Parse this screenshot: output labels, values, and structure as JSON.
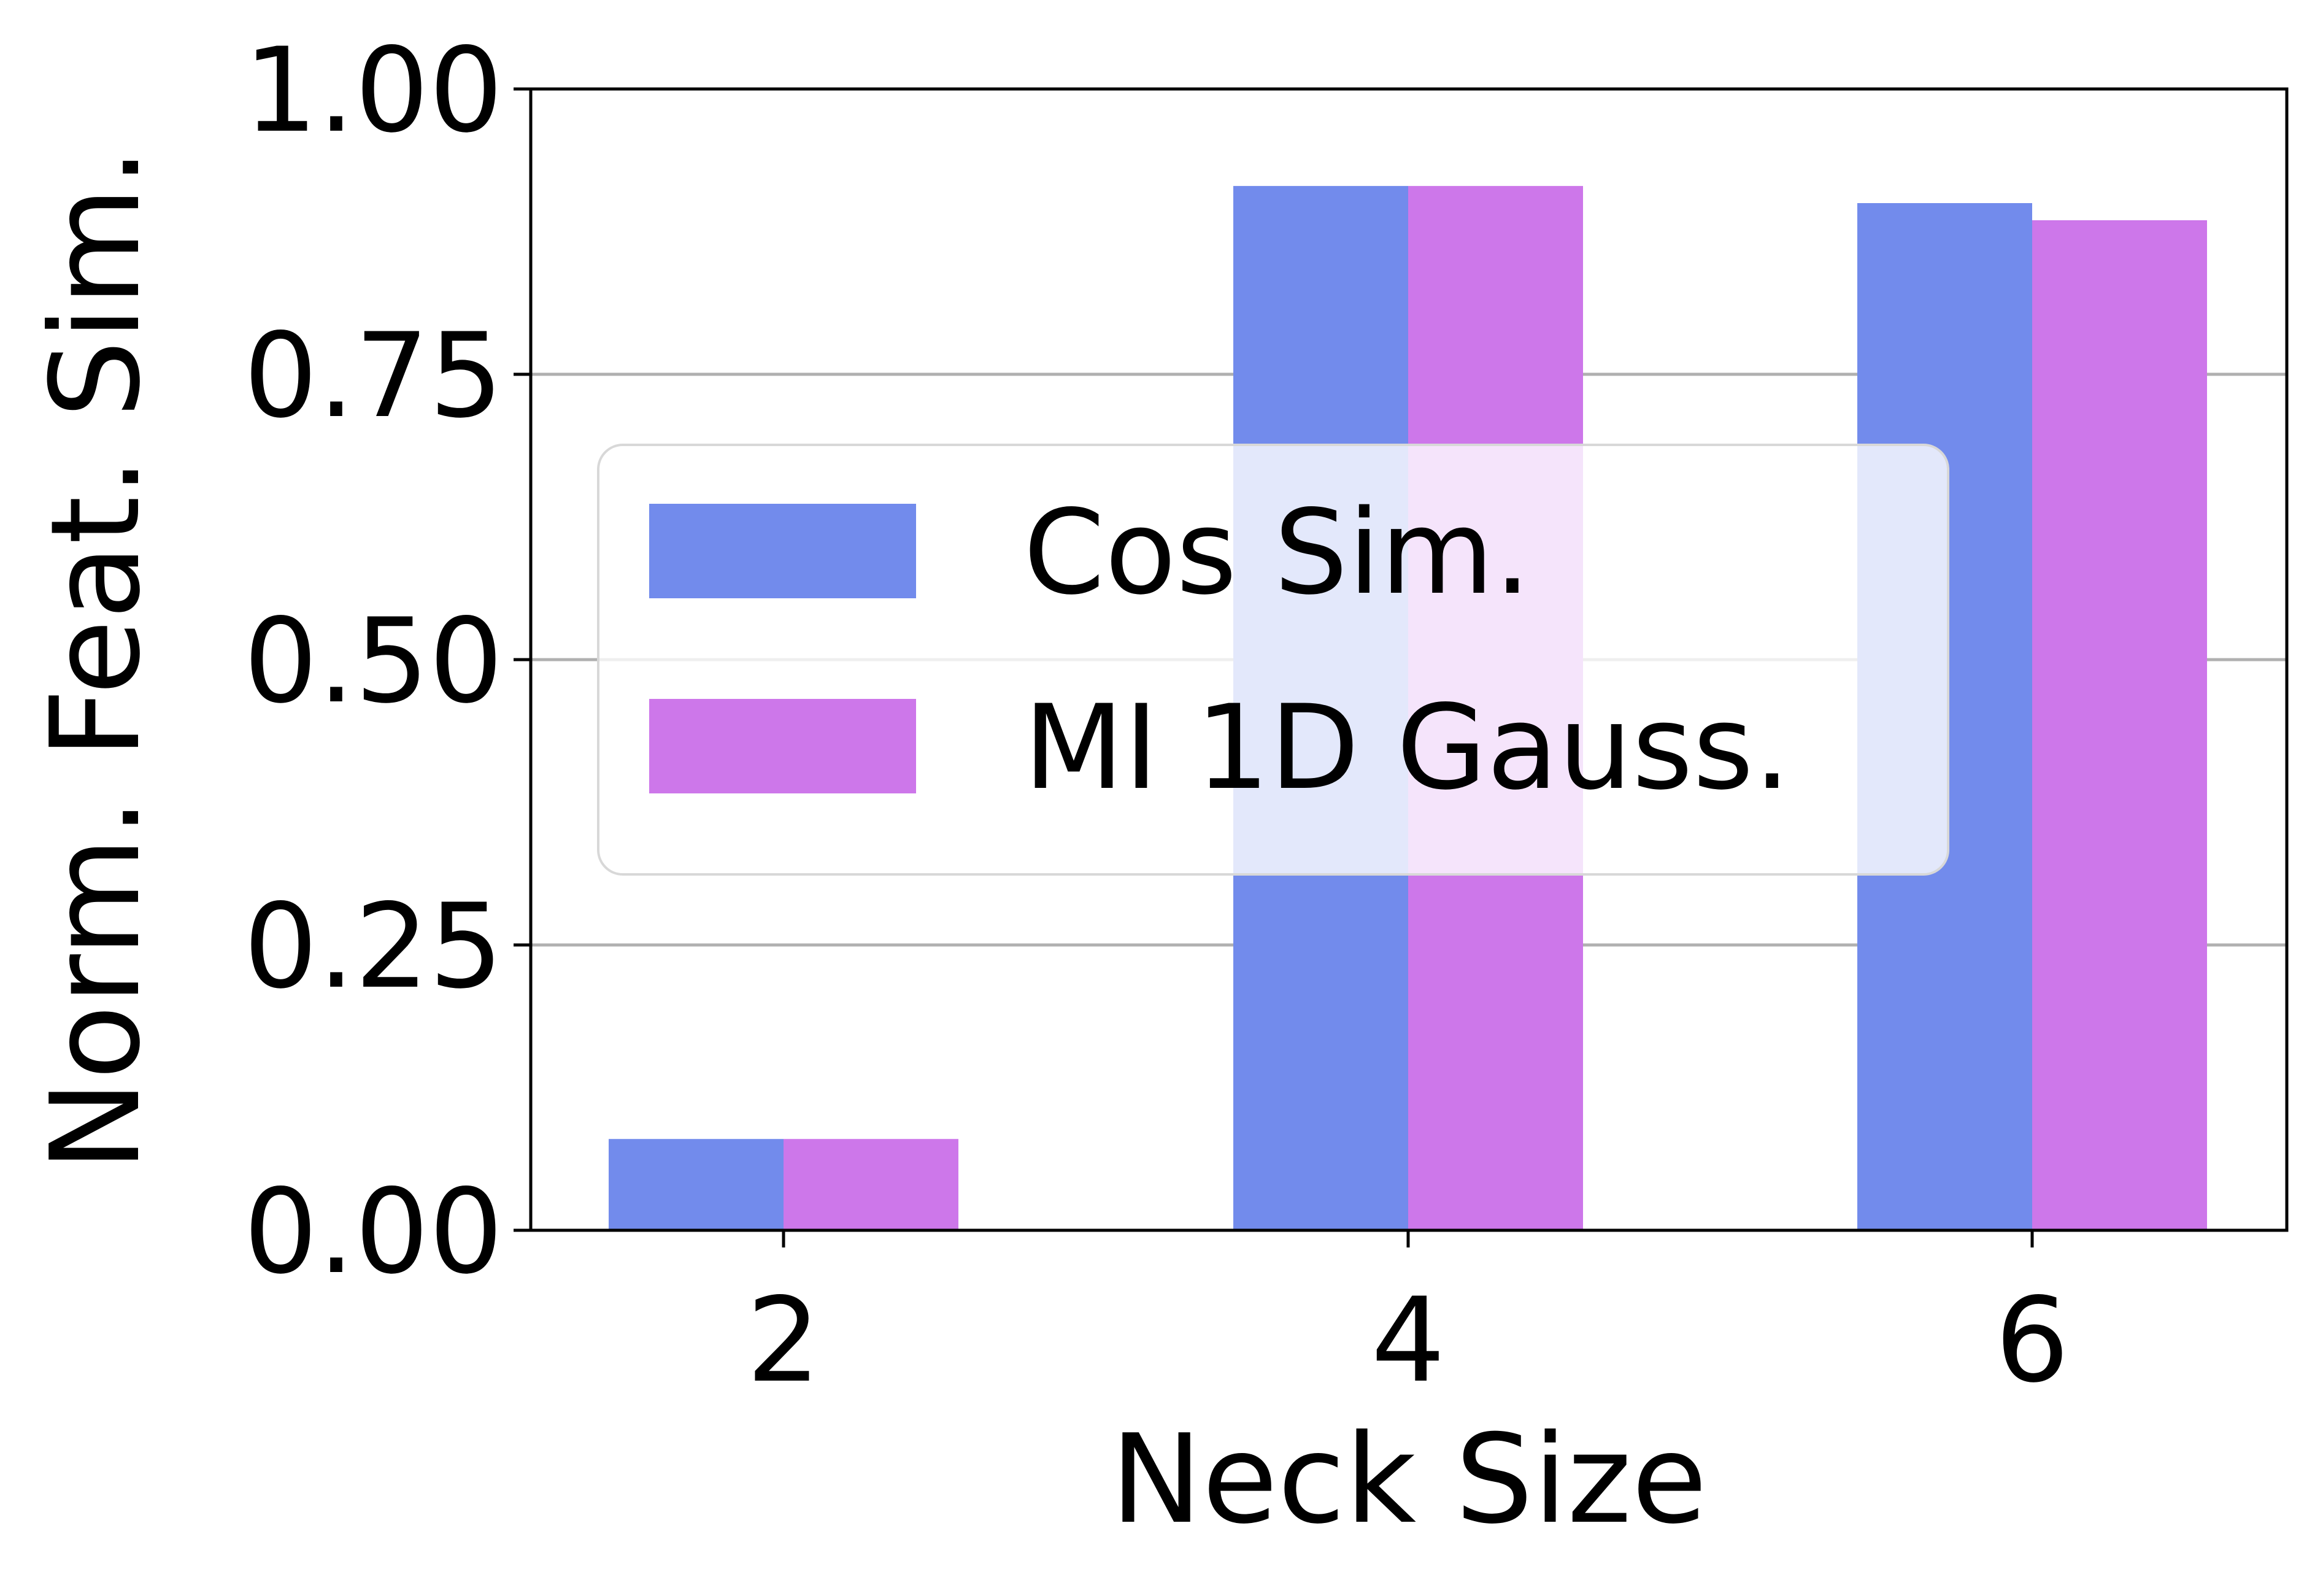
{
  "chart_data": {
    "type": "bar",
    "title": "",
    "xlabel": "Neck Size",
    "ylabel": "Norm. Feat. Sim.",
    "categories": [
      "2",
      "4",
      "6"
    ],
    "series": [
      {
        "name": "Cos Sim.",
        "color": "#728bec",
        "values": [
          0.08,
          0.915,
          0.9
        ]
      },
      {
        "name": "MI 1D Gauss.",
        "color": "#cd77ea",
        "values": [
          0.08,
          0.915,
          0.885
        ]
      }
    ],
    "ylim": [
      0,
      1.0
    ],
    "yticks": [
      "0.00",
      "0.25",
      "0.50",
      "0.75",
      "1.00"
    ],
    "grid": "y",
    "legend": "center"
  }
}
